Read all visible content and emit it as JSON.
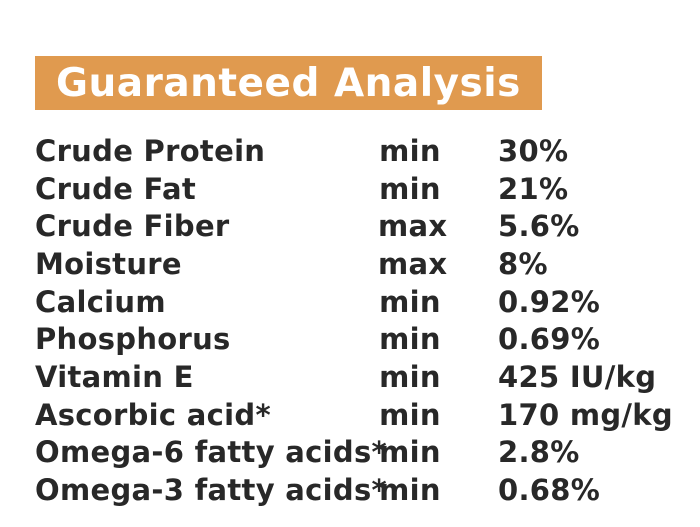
{
  "page": {
    "background_color": "#FFFFFF"
  },
  "header": {
    "title": "Guaranteed Analysis",
    "background_color": "#E09A4F",
    "text_color": "#FFFFFF"
  },
  "table": {
    "text_color": "#282828",
    "rows": [
      {
        "nutrient": "Crude Protein",
        "qualifier": "min",
        "value": "30%"
      },
      {
        "nutrient": "Crude Fat",
        "qualifier": "min",
        "value": "21%"
      },
      {
        "nutrient": "Crude Fiber",
        "qualifier": "max",
        "value": "5.6%"
      },
      {
        "nutrient": "Moisture",
        "qualifier": "max",
        "value": "8%"
      },
      {
        "nutrient": "Calcium",
        "qualifier": "min",
        "value": "0.92%"
      },
      {
        "nutrient": "Phosphorus",
        "qualifier": "min",
        "value": "0.69%"
      },
      {
        "nutrient": "Vitamin E",
        "qualifier": "min",
        "value": "425 IU/kg"
      },
      {
        "nutrient": "Ascorbic acid*",
        "qualifier": "min",
        "value": "170 mg/kg"
      },
      {
        "nutrient": "Omega-6 fatty acids*",
        "qualifier": "min",
        "value": "2.8%"
      },
      {
        "nutrient": "Omega-3 fatty acids*",
        "qualifier": "min",
        "value": "0.68%"
      }
    ]
  }
}
